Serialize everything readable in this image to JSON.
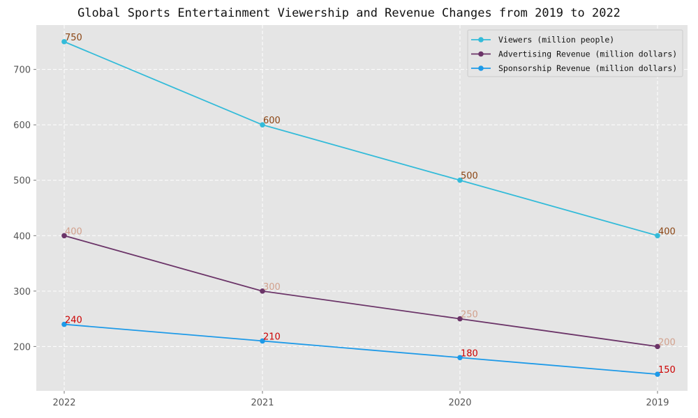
{
  "chart_data": {
    "type": "line",
    "title": "Global Sports Entertainment Viewership and Revenue Changes from 2019 to 2022",
    "xlabel": "",
    "ylabel": "",
    "categories": [
      "2022",
      "2021",
      "2020",
      "2019"
    ],
    "ylim": [
      120,
      780
    ],
    "yticks": [
      200,
      300,
      400,
      500,
      600,
      700
    ],
    "grid": true,
    "legend_position": "top-right",
    "series": [
      {
        "name": "Viewers (million people)",
        "values": [
          750,
          600,
          500,
          400
        ],
        "color": "#33bbd9",
        "label_color": "#8b4513"
      },
      {
        "name": "Advertising Revenue (million dollars)",
        "values": [
          400,
          300,
          250,
          200
        ],
        "color": "#6b3468",
        "label_color": "#d2a08c"
      },
      {
        "name": "Sponsorship Revenue (million dollars)",
        "values": [
          240,
          210,
          180,
          150
        ],
        "color": "#1e9ae8",
        "label_color": "#cc0000"
      }
    ]
  }
}
